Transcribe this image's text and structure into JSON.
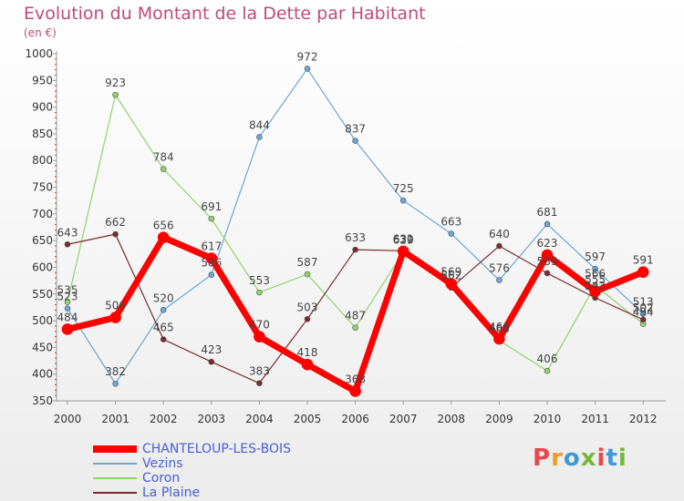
{
  "title": "Evolution du Montant de la Dette par Habitant",
  "subtitle": "(en €)",
  "logo": {
    "text": "Proxiti",
    "colors": [
      "#e8484b",
      "#f09a2a",
      "#3c9ad8",
      "#74b83a",
      "#e8484b",
      "#3c9ad8",
      "#74b83a"
    ]
  },
  "chart_data": {
    "type": "line",
    "x": [
      "2000",
      "2001",
      "2002",
      "2003",
      "2004",
      "2005",
      "2006",
      "2007",
      "2008",
      "2009",
      "2010",
      "2011",
      "2012"
    ],
    "ylim": [
      350,
      1000
    ],
    "yticks": [
      350,
      400,
      450,
      500,
      550,
      600,
      650,
      700,
      750,
      800,
      850,
      900,
      950,
      1000
    ],
    "grid": false,
    "legend_position": "bottom-left",
    "series": [
      {
        "name": "CHANTELOUP-LES-BOIS",
        "color": "#ff0000",
        "width": 7,
        "values": [
          484,
          506,
          656,
          617,
          470,
          418,
          368,
          630,
          569,
          466,
          623,
          555,
          591
        ],
        "labels": [
          "484",
          "506",
          "656",
          "617",
          "470",
          "418",
          "368",
          "630",
          "569",
          "466",
          "623",
          "555",
          "591"
        ]
      },
      {
        "name": "Vezins",
        "color": "#6aa6d6",
        "width": 1.2,
        "values": [
          523,
          382,
          520,
          586,
          844,
          972,
          837,
          725,
          663,
          576,
          681,
          597,
          513
        ],
        "labels": [
          "523",
          "382",
          "520",
          "586",
          "844",
          "972",
          "837",
          "725",
          "663",
          "576",
          "681",
          "597",
          "513"
        ]
      },
      {
        "name": "Coron",
        "color": "#8fd36a",
        "width": 1.2,
        "values": [
          535,
          923,
          784,
          691,
          553,
          587,
          487,
          629,
          562,
          463,
          406,
          566,
          494
        ],
        "labels": [
          "535",
          "923",
          "784",
          "691",
          "553",
          "587",
          "487",
          "629",
          "562",
          "463",
          "406",
          "566",
          "494"
        ]
      },
      {
        "name": "La Plaine",
        "color": "#7a2b2b",
        "width": 1.2,
        "values": [
          643,
          662,
          465,
          423,
          383,
          503,
          633,
          631,
          562,
          640,
          589,
          543,
          502
        ],
        "labels": [
          "643",
          "662",
          "465",
          "423",
          "383",
          "503",
          "633",
          "631",
          "562",
          "640",
          "589",
          "543",
          "502"
        ]
      }
    ]
  }
}
